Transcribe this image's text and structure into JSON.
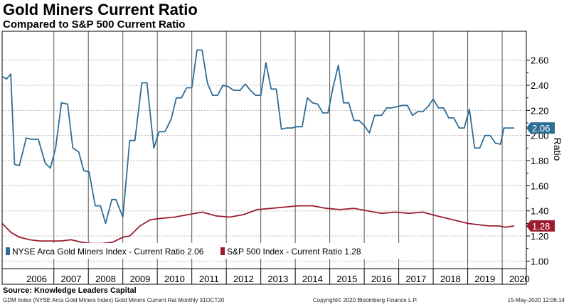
{
  "title": "Gold Miners Current Ratio",
  "subtitle": "Compared to S&P 500 Current Ratio",
  "source": "Source:  Knowledge Leaders Capital",
  "footer": {
    "left": "GDM Index (NYSE Arca Gold Miners Index)  Gold Miners Current Rat  Monthly 31OCT20",
    "middle": "Copyright© 2020 Bloomberg Finance L.P.",
    "right": "15-May-2020  12:06:14"
  },
  "chart_data": {
    "type": "line",
    "ylabel": "Ratio",
    "ylim": [
      0.94,
      2.83
    ],
    "xlim": [
      2005.5,
      2020.7
    ],
    "y_ticks": [
      "1.00",
      "1.20",
      "1.40",
      "1.60",
      "1.80",
      "2.00",
      "2.20",
      "2.40",
      "2.60"
    ],
    "x_ticks": [
      "2006",
      "2007",
      "2008",
      "2009",
      "2010",
      "2011",
      "2012",
      "2013",
      "2014",
      "2015",
      "2016",
      "2017",
      "2018",
      "2019",
      "2020"
    ],
    "grid": true,
    "legend_position": "bottom-left",
    "series": [
      {
        "name": "NYSE Arca Gold Miners Index - Current Ratio 2.06",
        "color": "#2e6d96",
        "last_value_label": "2.06",
        "x": [
          2005.5,
          2005.63,
          2005.75,
          2005.86,
          2006.0,
          2006.2,
          2006.35,
          2006.55,
          2006.75,
          2006.9,
          2007.05,
          2007.22,
          2007.4,
          2007.55,
          2007.72,
          2007.87,
          2008.02,
          2008.2,
          2008.35,
          2008.5,
          2008.68,
          2008.8,
          2009.0,
          2009.2,
          2009.35,
          2009.55,
          2009.7,
          2009.9,
          2010.05,
          2010.22,
          2010.4,
          2010.55,
          2010.7,
          2010.85,
          2011.0,
          2011.15,
          2011.3,
          2011.45,
          2011.6,
          2011.75,
          2011.9,
          2012.05,
          2012.22,
          2012.4,
          2012.55,
          2012.7,
          2012.85,
          2013.0,
          2013.15,
          2013.3,
          2013.45,
          2013.6,
          2013.75,
          2013.9,
          2014.05,
          2014.2,
          2014.35,
          2014.5,
          2014.65,
          2014.8,
          2014.95,
          2015.1,
          2015.25,
          2015.4,
          2015.55,
          2015.7,
          2015.85,
          2016.0,
          2016.15,
          2016.3,
          2016.5,
          2016.65,
          2016.8,
          2016.95,
          2017.1,
          2017.25,
          2017.4,
          2017.55,
          2017.7,
          2017.85,
          2018.0,
          2018.15,
          2018.3,
          2018.45,
          2018.6,
          2018.75,
          2018.9,
          2019.05,
          2019.2,
          2019.35,
          2019.5,
          2019.65,
          2019.8,
          2019.95,
          2020.05,
          2020.2,
          2020.35
        ],
        "y": [
          2.47,
          2.45,
          2.49,
          1.77,
          1.76,
          1.98,
          1.97,
          1.97,
          1.78,
          1.74,
          1.9,
          2.26,
          2.25,
          1.9,
          1.87,
          1.72,
          1.71,
          1.44,
          1.44,
          1.3,
          1.49,
          1.49,
          1.35,
          1.96,
          1.96,
          2.42,
          2.42,
          1.9,
          2.03,
          2.03,
          2.13,
          2.3,
          2.3,
          2.38,
          2.38,
          2.68,
          2.68,
          2.42,
          2.32,
          2.32,
          2.4,
          2.39,
          2.36,
          2.36,
          2.41,
          2.36,
          2.32,
          2.32,
          2.58,
          2.37,
          2.37,
          2.05,
          2.06,
          2.06,
          2.07,
          2.07,
          2.3,
          2.26,
          2.25,
          2.18,
          2.18,
          2.39,
          2.56,
          2.26,
          2.26,
          2.12,
          2.12,
          2.08,
          2.02,
          2.16,
          2.16,
          2.22,
          2.22,
          2.23,
          2.24,
          2.24,
          2.16,
          2.19,
          2.19,
          2.23,
          2.29,
          2.22,
          2.22,
          2.14,
          2.14,
          2.06,
          2.06,
          2.21,
          1.9,
          1.9,
          2.0,
          2.0,
          1.94,
          1.93,
          2.06,
          2.06,
          2.06
        ]
      },
      {
        "name": "S&P 500 Index - Current Ratio 1.28",
        "color": "#9b1c30",
        "last_value_label": "1.28",
        "x": [
          2005.5,
          2005.75,
          2006.0,
          2006.3,
          2006.6,
          2006.9,
          2007.2,
          2007.5,
          2007.8,
          2008.1,
          2008.4,
          2008.7,
          2009.0,
          2009.2,
          2009.5,
          2009.8,
          2010.1,
          2010.5,
          2010.9,
          2011.3,
          2011.7,
          2012.1,
          2012.5,
          2012.9,
          2013.3,
          2013.7,
          2014.1,
          2014.5,
          2014.9,
          2015.3,
          2015.7,
          2016.1,
          2016.5,
          2016.9,
          2017.3,
          2017.7,
          2018.1,
          2018.4,
          2018.7,
          2019.0,
          2019.3,
          2019.6,
          2019.9,
          2020.1,
          2020.35
        ],
        "y": [
          1.3,
          1.23,
          1.19,
          1.17,
          1.16,
          1.16,
          1.16,
          1.17,
          1.15,
          1.14,
          1.14,
          1.15,
          1.19,
          1.2,
          1.28,
          1.33,
          1.34,
          1.35,
          1.37,
          1.39,
          1.36,
          1.35,
          1.37,
          1.41,
          1.42,
          1.43,
          1.44,
          1.44,
          1.42,
          1.41,
          1.42,
          1.4,
          1.38,
          1.39,
          1.38,
          1.39,
          1.36,
          1.34,
          1.32,
          1.3,
          1.29,
          1.28,
          1.28,
          1.27,
          1.28
        ]
      }
    ]
  }
}
